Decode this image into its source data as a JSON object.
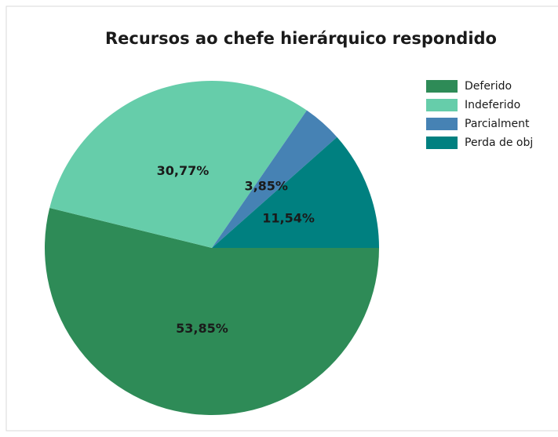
{
  "chart_data": {
    "type": "pie",
    "title": "Recursos ao chefe hierárquico respondido",
    "categories": [
      "Deferido",
      "Indeferido",
      "Parcialment",
      "Perda de obj"
    ],
    "values": [
      53.85,
      30.77,
      3.85,
      11.54
    ],
    "value_labels": [
      "53,85%",
      "30,77%",
      "3,85%",
      "11,54%"
    ],
    "colors": [
      "#2e8b57",
      "#66cdaa",
      "#4682b4",
      "#008080"
    ],
    "legend": "right"
  }
}
